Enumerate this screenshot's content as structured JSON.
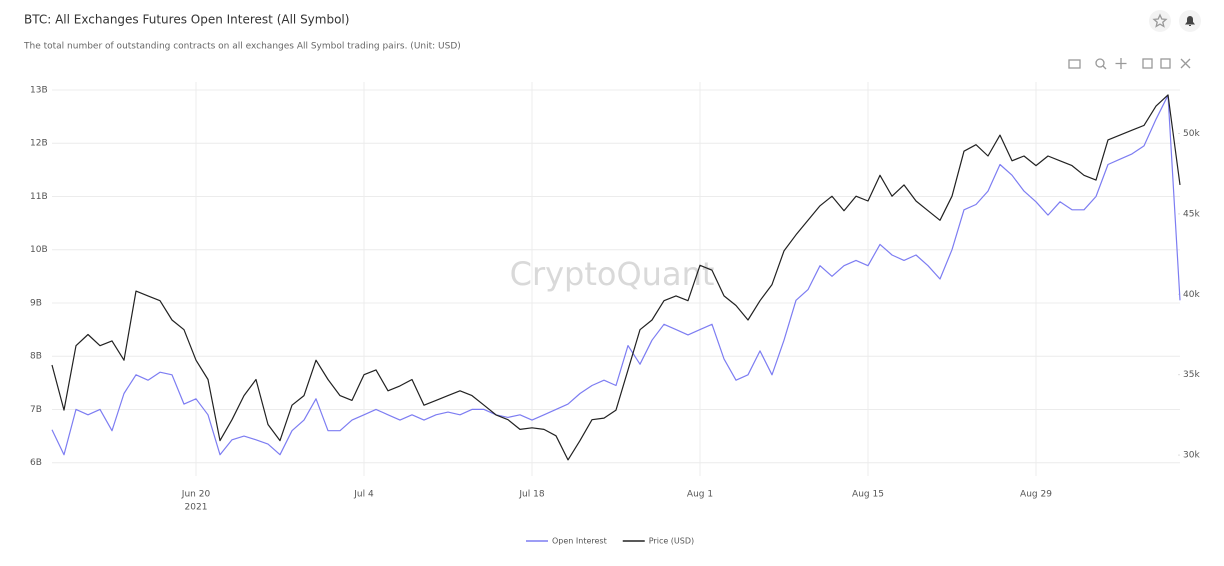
{
  "chart_data": {
    "type": "line",
    "title": "BTC: All Exchanges Futures Open Interest (All Symbol)",
    "subtitle": "The total number of outstanding contracts on all exchanges All Symbol trading pairs. (Unit: USD)",
    "watermark": "CryptoQuant",
    "x": [
      "2021-06-08",
      "2021-06-09",
      "2021-06-10",
      "2021-06-11",
      "2021-06-12",
      "2021-06-13",
      "2021-06-14",
      "2021-06-15",
      "2021-06-16",
      "2021-06-17",
      "2021-06-18",
      "2021-06-19",
      "2021-06-20",
      "2021-06-21",
      "2021-06-22",
      "2021-06-23",
      "2021-06-24",
      "2021-06-25",
      "2021-06-26",
      "2021-06-27",
      "2021-06-28",
      "2021-06-29",
      "2021-06-30",
      "2021-07-01",
      "2021-07-02",
      "2021-07-03",
      "2021-07-04",
      "2021-07-05",
      "2021-07-06",
      "2021-07-07",
      "2021-07-08",
      "2021-07-09",
      "2021-07-10",
      "2021-07-11",
      "2021-07-12",
      "2021-07-13",
      "2021-07-14",
      "2021-07-15",
      "2021-07-16",
      "2021-07-17",
      "2021-07-18",
      "2021-07-19",
      "2021-07-20",
      "2021-07-21",
      "2021-07-22",
      "2021-07-23",
      "2021-07-24",
      "2021-07-25",
      "2021-07-26",
      "2021-07-27",
      "2021-07-28",
      "2021-07-29",
      "2021-07-30",
      "2021-07-31",
      "2021-08-01",
      "2021-08-02",
      "2021-08-03",
      "2021-08-04",
      "2021-08-05",
      "2021-08-06",
      "2021-08-07",
      "2021-08-08",
      "2021-08-09",
      "2021-08-10",
      "2021-08-11",
      "2021-08-12",
      "2021-08-13",
      "2021-08-14",
      "2021-08-15",
      "2021-08-16",
      "2021-08-17",
      "2021-08-18",
      "2021-08-19",
      "2021-08-20",
      "2021-08-21",
      "2021-08-22",
      "2021-08-23",
      "2021-08-24",
      "2021-08-25",
      "2021-08-26",
      "2021-08-27",
      "2021-08-28",
      "2021-08-29",
      "2021-08-30",
      "2021-08-31",
      "2021-09-01",
      "2021-09-02",
      "2021-09-03",
      "2021-09-04",
      "2021-09-05",
      "2021-09-06",
      "2021-09-07",
      "2021-09-08",
      "2021-09-09",
      "2021-09-10"
    ],
    "series": [
      {
        "name": "Open Interest",
        "color": "#7d7df2",
        "values": [
          6620000000,
          6150000000,
          7000000000,
          6900000000,
          7000000000,
          6600000000,
          7300000000,
          7650000000,
          7550000000,
          7700000000,
          7650000000,
          7100000000,
          7200000000,
          6900000000,
          6150000000,
          6430000000,
          6500000000,
          6430000000,
          6350000000,
          6150000000,
          6600000000,
          6800000000,
          7200000000,
          6600000000,
          6600000000,
          6800000000,
          6900000000,
          7000000000,
          6900000000,
          6800000000,
          6900000000,
          6800000000,
          6900000000,
          6950000000,
          6900000000,
          7000000000,
          7000000000,
          6900000000,
          6850000000,
          6900000000,
          6800000000,
          6900000000,
          7000000000,
          7100000000,
          7300000000,
          7450000000,
          7550000000,
          7450000000,
          8200000000,
          7850000000,
          8300000000,
          8600000000,
          8500000000,
          8400000000,
          8500000000,
          8600000000,
          7950000000,
          7550000000,
          7650000000,
          8100000000,
          7650000000,
          8300000000,
          9050000000,
          9250000000,
          9700000000,
          9500000000,
          9700000000,
          9800000000,
          9700000000,
          10100000000,
          9900000000,
          9800000000,
          9900000000,
          9700000000,
          9450000000,
          10000000000,
          10750000000,
          10850000000,
          11100000000,
          11600000000,
          11400000000,
          11100000000,
          10900000000,
          10650000000,
          10900000000,
          10750000000,
          10750000000,
          11000000000,
          11600000000,
          11700000000,
          11800000000,
          11950000000,
          12450000000,
          12900000000,
          9050000000
        ]
      },
      {
        "name": "Price (USD)",
        "color": "#222222",
        "axis": "y2",
        "values": [
          35600,
          32800,
          36800,
          37500,
          36800,
          37100,
          35900,
          40200,
          39900,
          39600,
          38400,
          37800,
          35900,
          34700,
          30900,
          32200,
          33700,
          34700,
          31900,
          30900,
          33100,
          33700,
          35900,
          34700,
          33700,
          33400,
          35000,
          35300,
          34000,
          34300,
          34700,
          33100,
          33400,
          33700,
          34000,
          33700,
          33100,
          32500,
          32200,
          31600,
          31700,
          31600,
          31200,
          29700,
          30900,
          32200,
          32300,
          32800,
          35300,
          37800,
          38400,
          39600,
          39900,
          39600,
          41800,
          41500,
          39900,
          39300,
          38400,
          39600,
          40600,
          42700,
          43700,
          44600,
          45500,
          46100,
          45200,
          46100,
          45800,
          47400,
          46100,
          46800,
          45800,
          45200,
          44600,
          46100,
          48900,
          49300,
          48600,
          49900,
          48300,
          48600,
          48000,
          48600,
          48300,
          48000,
          47400,
          47100,
          49600,
          49900,
          50200,
          50500,
          51700,
          52400,
          46800
        ]
      }
    ],
    "xlim": [
      "2021-06-08",
      "2021-09-10"
    ],
    "xticks": [
      {
        "value": "2021-06-20",
        "label": "Jun 20",
        "sublabel": "2021"
      },
      {
        "value": "2021-07-04",
        "label": "Jul 4"
      },
      {
        "value": "2021-07-18",
        "label": "Jul 18"
      },
      {
        "value": "2021-08-01",
        "label": "Aug 1"
      },
      {
        "value": "2021-08-15",
        "label": "Aug 15"
      },
      {
        "value": "2021-08-29",
        "label": "Aug 29"
      }
    ],
    "ylim": [
      5750000000,
      13150000000
    ],
    "yticks": [
      {
        "value": 6000000000,
        "label": "6B"
      },
      {
        "value": 7000000000,
        "label": "7B"
      },
      {
        "value": 8000000000,
        "label": "8B"
      },
      {
        "value": 9000000000,
        "label": "9B"
      },
      {
        "value": 10000000000,
        "label": "10B"
      },
      {
        "value": 11000000000,
        "label": "11B"
      },
      {
        "value": 12000000000,
        "label": "12B"
      },
      {
        "value": 13000000000,
        "label": "13B"
      }
    ],
    "y2lim": [
      28700,
      53200
    ],
    "y2ticks": [
      {
        "value": 30000,
        "label": "30k"
      },
      {
        "value": 35000,
        "label": "35k"
      },
      {
        "value": 40000,
        "label": "40k"
      },
      {
        "value": 45000,
        "label": "45k"
      },
      {
        "value": 50000,
        "label": "50k"
      }
    ],
    "grid": true,
    "legend": "bottom"
  }
}
